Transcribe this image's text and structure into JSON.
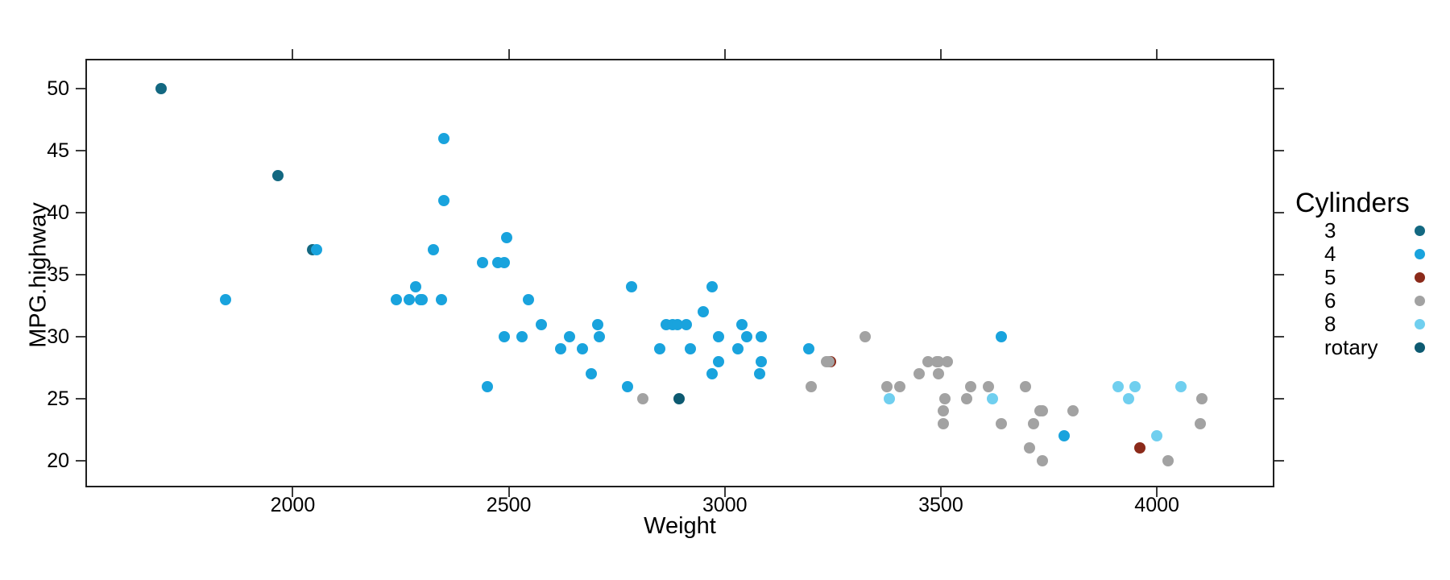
{
  "chart_data": {
    "type": "scatter",
    "title": "",
    "xlabel": "Weight",
    "ylabel": "MPG.highway",
    "xlim": [
      1520,
      4272
    ],
    "ylim": [
      17.85,
      52.4
    ],
    "x_ticks": [
      2000,
      2500,
      3000,
      3500,
      4000
    ],
    "y_ticks": [
      20,
      25,
      30,
      35,
      40,
      45,
      50
    ],
    "grid": false,
    "legend": {
      "title": "Cylinders",
      "position": "right",
      "items": [
        {
          "label": "3",
          "color": "#136881"
        },
        {
          "label": "4",
          "color": "#19a3dd"
        },
        {
          "label": "5",
          "color": "#8b2a1a"
        },
        {
          "label": "6",
          "color": "#a2a2a2"
        },
        {
          "label": "8",
          "color": "#70cfef"
        },
        {
          "label": "rotary",
          "color": "#0d5a71"
        }
      ]
    },
    "series": [
      {
        "name": "3",
        "color": "#136881",
        "points": [
          [
            1695,
            50
          ],
          [
            1965,
            43
          ],
          [
            2045,
            37
          ]
        ]
      },
      {
        "name": "rotary",
        "color": "#0d5a71",
        "points": [
          [
            2895,
            25
          ]
        ]
      },
      {
        "name": "5",
        "color": "#8b2a1a",
        "points": [
          [
            3245,
            28
          ],
          [
            3960,
            21
          ]
        ]
      },
      {
        "name": "4",
        "color": "#19a3dd",
        "points": [
          [
            2350,
            46
          ],
          [
            2350,
            41
          ],
          [
            2495,
            38
          ],
          [
            2055,
            37
          ],
          [
            2325,
            37
          ],
          [
            2440,
            36
          ],
          [
            2475,
            36
          ],
          [
            2490,
            36
          ],
          [
            2285,
            34
          ],
          [
            2785,
            34
          ],
          [
            2970,
            34
          ],
          [
            1845,
            33
          ],
          [
            2240,
            33
          ],
          [
            2270,
            33
          ],
          [
            2295,
            33
          ],
          [
            2300,
            33
          ],
          [
            2345,
            33
          ],
          [
            2545,
            33
          ],
          [
            2950,
            32
          ],
          [
            2575,
            31
          ],
          [
            2705,
            31
          ],
          [
            2865,
            31
          ],
          [
            2880,
            31
          ],
          [
            2890,
            31
          ],
          [
            2910,
            31
          ],
          [
            3040,
            31
          ],
          [
            2490,
            30
          ],
          [
            2530,
            30
          ],
          [
            2640,
            30
          ],
          [
            2710,
            30
          ],
          [
            2985,
            30
          ],
          [
            3050,
            30
          ],
          [
            3085,
            30
          ],
          [
            3640,
            30
          ],
          [
            2620,
            29
          ],
          [
            2670,
            29
          ],
          [
            2850,
            29
          ],
          [
            2920,
            29
          ],
          [
            3030,
            29
          ],
          [
            3195,
            29
          ],
          [
            2985,
            28
          ],
          [
            3085,
            28
          ],
          [
            2690,
            27
          ],
          [
            2970,
            27
          ],
          [
            3080,
            27
          ],
          [
            2450,
            26
          ],
          [
            2775,
            26
          ],
          [
            3785,
            22
          ]
        ]
      },
      {
        "name": "6",
        "color": "#a2a2a2",
        "points": [
          [
            2810,
            25
          ],
          [
            3200,
            26
          ],
          [
            3235,
            28
          ],
          [
            3240,
            28
          ],
          [
            3325,
            30
          ],
          [
            3375,
            26
          ],
          [
            3405,
            26
          ],
          [
            3450,
            27
          ],
          [
            3470,
            28
          ],
          [
            3490,
            28
          ],
          [
            3495,
            28
          ],
          [
            3515,
            28
          ],
          [
            3495,
            27
          ],
          [
            3510,
            25
          ],
          [
            3560,
            25
          ],
          [
            3505,
            24
          ],
          [
            3505,
            23
          ],
          [
            3570,
            26
          ],
          [
            3610,
            26
          ],
          [
            3695,
            26
          ],
          [
            3640,
            23
          ],
          [
            3715,
            23
          ],
          [
            3730,
            24
          ],
          [
            3735,
            24
          ],
          [
            3805,
            24
          ],
          [
            3705,
            21
          ],
          [
            3735,
            20
          ],
          [
            4025,
            20
          ],
          [
            4100,
            23
          ],
          [
            4105,
            25
          ]
        ]
      },
      {
        "name": "8",
        "color": "#70cfef",
        "points": [
          [
            3380,
            25
          ],
          [
            3620,
            25
          ],
          [
            3935,
            25
          ],
          [
            3910,
            26
          ],
          [
            3950,
            26
          ],
          [
            4055,
            26
          ],
          [
            4000,
            22
          ]
        ]
      }
    ]
  }
}
